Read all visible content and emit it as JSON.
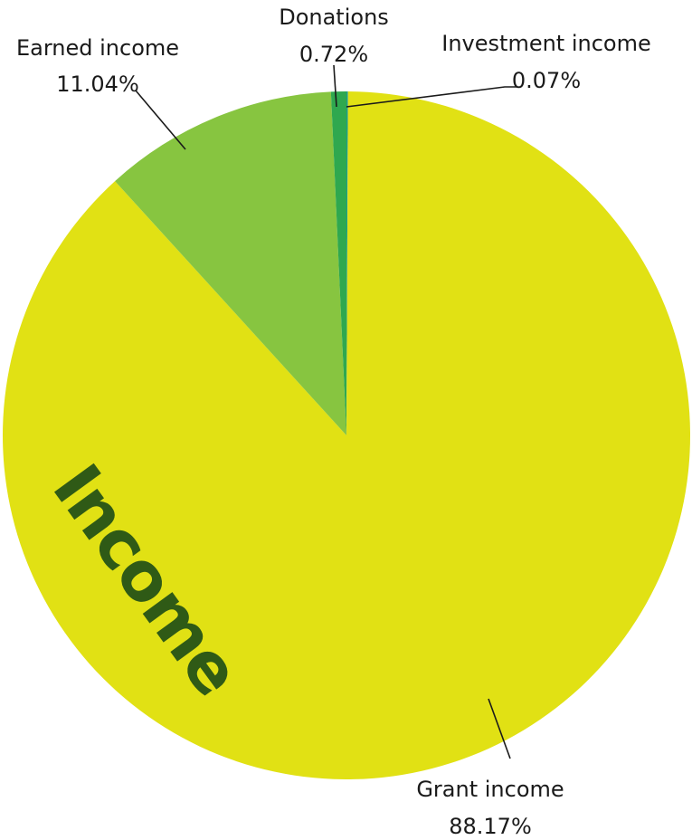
{
  "chart_data": {
    "type": "pie",
    "title": "Income",
    "start": "top",
    "direction": "clockwise",
    "slices": [
      {
        "label": "Investment income",
        "value": 0.07,
        "display": "0.07%",
        "color": "#1f9e8a"
      },
      {
        "label": "Grant income",
        "value": 88.17,
        "display": "88.17%",
        "color": "#e1e114"
      },
      {
        "label": "Earned income",
        "value": 11.04,
        "display": "11.04%",
        "color": "#87c540"
      },
      {
        "label": "Donations",
        "value": 0.72,
        "display": "0.72%",
        "color": "#2fa84f"
      }
    ]
  }
}
